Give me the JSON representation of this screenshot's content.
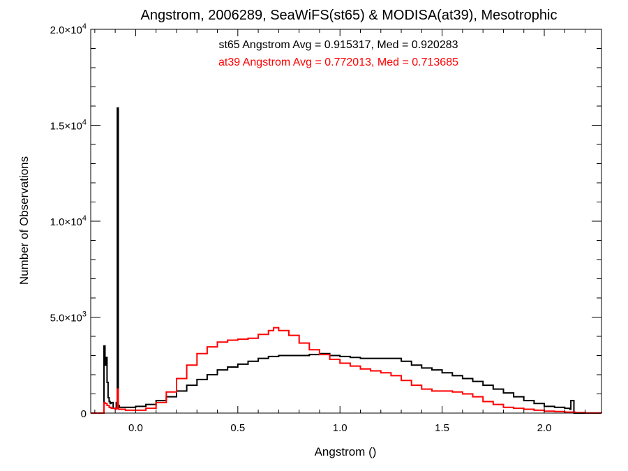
{
  "chart_data": {
    "type": "line",
    "title": "Angstrom, 2006289, SeaWiFS(st65) & MODISA(at39), Mesotrophic",
    "xlabel": "Angstrom ()",
    "ylabel": "Number of Observations",
    "xlim": [
      -0.22,
      2.28
    ],
    "ylim": [
      0,
      20000
    ],
    "x_ticks": [
      {
        "value": 0.0,
        "label": "0.0"
      },
      {
        "value": 0.5,
        "label": "0.5"
      },
      {
        "value": 1.0,
        "label": "1.0"
      },
      {
        "value": 1.5,
        "label": "1.5"
      },
      {
        "value": 2.0,
        "label": "2.0"
      }
    ],
    "y_ticks": [
      {
        "value": 0,
        "mant": "0",
        "exp": ""
      },
      {
        "value": 5000,
        "mant": "5.0×10",
        "exp": "3"
      },
      {
        "value": 10000,
        "mant": "1.0×10",
        "exp": "4"
      },
      {
        "value": 15000,
        "mant": "1.5×10",
        "exp": "4"
      },
      {
        "value": 20000,
        "mant": "2.0×10",
        "exp": "4"
      }
    ],
    "annotations": [
      {
        "text": "st65 Angstrom Avg = 0.915317, Med = 0.920283",
        "color": "#000000"
      },
      {
        "text": "at39 Angstrom Avg = 0.772013, Med = 0.713685",
        "color": "#ff0000"
      }
    ],
    "series": [
      {
        "color": "#000000",
        "points": [
          [
            -0.22,
            0
          ],
          [
            -0.16,
            0
          ],
          [
            -0.155,
            3500
          ],
          [
            -0.15,
            2500
          ],
          [
            -0.145,
            2900
          ],
          [
            -0.14,
            1600
          ],
          [
            -0.135,
            800
          ],
          [
            -0.13,
            600
          ],
          [
            -0.125,
            500
          ],
          [
            -0.12,
            550
          ],
          [
            -0.11,
            250
          ],
          [
            -0.095,
            550
          ],
          [
            -0.09,
            15900
          ],
          [
            -0.085,
            400
          ],
          [
            -0.08,
            300
          ],
          [
            -0.05,
            300
          ],
          [
            0.0,
            350
          ],
          [
            0.05,
            450
          ],
          [
            0.1,
            650
          ],
          [
            0.15,
            850
          ],
          [
            0.2,
            1150
          ],
          [
            0.25,
            1450
          ],
          [
            0.3,
            1750
          ],
          [
            0.35,
            2000
          ],
          [
            0.4,
            2250
          ],
          [
            0.45,
            2400
          ],
          [
            0.5,
            2550
          ],
          [
            0.55,
            2700
          ],
          [
            0.6,
            2850
          ],
          [
            0.65,
            2950
          ],
          [
            0.7,
            3000
          ],
          [
            0.75,
            3000
          ],
          [
            0.8,
            3000
          ],
          [
            0.85,
            3050
          ],
          [
            0.9,
            3100
          ],
          [
            0.95,
            3000
          ],
          [
            1.0,
            2950
          ],
          [
            1.05,
            2900
          ],
          [
            1.1,
            2850
          ],
          [
            1.15,
            2850
          ],
          [
            1.2,
            2850
          ],
          [
            1.25,
            2850
          ],
          [
            1.3,
            2700
          ],
          [
            1.35,
            2500
          ],
          [
            1.4,
            2350
          ],
          [
            1.45,
            2250
          ],
          [
            1.5,
            2100
          ],
          [
            1.55,
            1950
          ],
          [
            1.6,
            1800
          ],
          [
            1.65,
            1650
          ],
          [
            1.7,
            1450
          ],
          [
            1.75,
            1250
          ],
          [
            1.8,
            1050
          ],
          [
            1.85,
            850
          ],
          [
            1.9,
            650
          ],
          [
            1.95,
            500
          ],
          [
            2.0,
            350
          ],
          [
            2.05,
            300
          ],
          [
            2.1,
            250
          ],
          [
            2.125,
            200
          ],
          [
            2.13,
            650
          ],
          [
            2.14,
            650
          ],
          [
            2.145,
            0
          ],
          [
            2.28,
            0
          ]
        ]
      },
      {
        "color": "#ff0000",
        "points": [
          [
            -0.22,
            0
          ],
          [
            -0.16,
            0
          ],
          [
            -0.155,
            550
          ],
          [
            -0.15,
            500
          ],
          [
            -0.14,
            400
          ],
          [
            -0.13,
            300
          ],
          [
            -0.12,
            250
          ],
          [
            -0.1,
            200
          ],
          [
            -0.095,
            250
          ],
          [
            -0.09,
            1250
          ],
          [
            -0.085,
            200
          ],
          [
            -0.05,
            150
          ],
          [
            0.0,
            150
          ],
          [
            0.05,
            250
          ],
          [
            0.1,
            550
          ],
          [
            0.15,
            1100
          ],
          [
            0.2,
            1800
          ],
          [
            0.25,
            2500
          ],
          [
            0.3,
            3100
          ],
          [
            0.35,
            3450
          ],
          [
            0.4,
            3700
          ],
          [
            0.45,
            3800
          ],
          [
            0.5,
            3850
          ],
          [
            0.55,
            3900
          ],
          [
            0.6,
            4100
          ],
          [
            0.65,
            4300
          ],
          [
            0.675,
            4450
          ],
          [
            0.7,
            4300
          ],
          [
            0.75,
            4050
          ],
          [
            0.8,
            3650
          ],
          [
            0.85,
            3300
          ],
          [
            0.9,
            3050
          ],
          [
            0.95,
            2800
          ],
          [
            1.0,
            2600
          ],
          [
            1.05,
            2450
          ],
          [
            1.1,
            2300
          ],
          [
            1.15,
            2200
          ],
          [
            1.2,
            2100
          ],
          [
            1.25,
            1950
          ],
          [
            1.3,
            1700
          ],
          [
            1.35,
            1450
          ],
          [
            1.4,
            1250
          ],
          [
            1.45,
            1150
          ],
          [
            1.5,
            1150
          ],
          [
            1.55,
            1100
          ],
          [
            1.6,
            1000
          ],
          [
            1.65,
            850
          ],
          [
            1.7,
            600
          ],
          [
            1.75,
            450
          ],
          [
            1.8,
            300
          ],
          [
            1.85,
            250
          ],
          [
            1.9,
            200
          ],
          [
            1.95,
            150
          ],
          [
            2.0,
            100
          ],
          [
            2.05,
            80
          ],
          [
            2.1,
            50
          ],
          [
            2.15,
            30
          ],
          [
            2.2,
            10
          ],
          [
            2.28,
            0
          ]
        ]
      }
    ]
  }
}
